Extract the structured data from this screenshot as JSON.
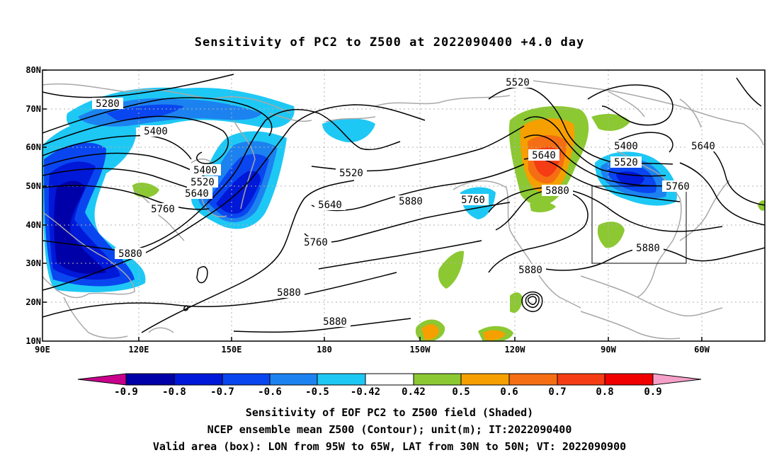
{
  "title": "Sensitivity of PC2 to Z500 at 2022090400 +4.0 day",
  "lat_labels": [
    "80N",
    "70N",
    "60N",
    "50N",
    "40N",
    "30N",
    "20N",
    "10N"
  ],
  "lon_labels": [
    "90E",
    "120E",
    "150E",
    "180",
    "150W",
    "120W",
    "90W",
    "60W"
  ],
  "contour_labels": [
    "5280",
    "5400",
    "5400",
    "5520",
    "5640",
    "5760",
    "5880",
    "5880",
    "5520",
    "5640",
    "5760",
    "5760",
    "5880",
    "5640",
    "5880",
    "5520",
    "5640",
    "5880",
    "5400",
    "5520",
    "5640",
    "5760",
    "5880",
    "5880"
  ],
  "colorbar": {
    "labels": [
      "-0.9",
      "-0.8",
      "-0.7",
      "-0.6",
      "-0.5",
      "-0.42",
      "0.42",
      "0.5",
      "0.6",
      "0.7",
      "0.8",
      "0.9"
    ],
    "colors": [
      "#c8008c",
      "#0000a8",
      "#0018d8",
      "#0a46f0",
      "#1c82f0",
      "#1ec8f5",
      "#ffffff",
      "#8cc832",
      "#f5a000",
      "#f56e14",
      "#f53c14",
      "#f00000",
      "#f5a0c8"
    ]
  },
  "footer": [
    "Sensitivity of EOF PC2 to Z500 field (Shaded)",
    "NCEP ensemble mean Z500 (Contour); unit(m); IT:2022090400",
    "Valid area (box): LON from 95W to 65W, LAT from 30N to 50N; VT: 2022090900"
  ],
  "valid_box": {
    "lon_from": "95W",
    "lon_to": "65W",
    "lat_from": "30N",
    "lat_to": "50N"
  }
}
